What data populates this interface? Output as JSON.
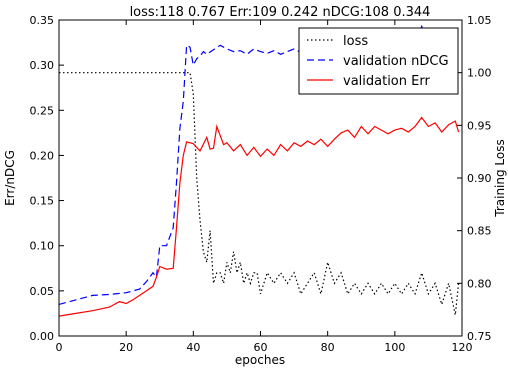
{
  "chart_data": {
    "type": "line",
    "title": "loss:118 0.767 Err:109 0.242 nDCG:108 0.344",
    "xlabel": "epoches",
    "ylabel_left": "Err/nDCG",
    "ylabel_right": "Training Loss",
    "xlim": [
      0,
      120
    ],
    "ylim_left": [
      0.0,
      0.35
    ],
    "ylim_right": [
      0.75,
      1.05
    ],
    "xticks": [
      "0",
      "20",
      "40",
      "60",
      "80",
      "100",
      "120"
    ],
    "yticks_left": [
      "0.00",
      "0.05",
      "0.10",
      "0.15",
      "0.20",
      "0.25",
      "0.30",
      "0.35"
    ],
    "yticks_right": [
      "0.75",
      "0.80",
      "0.85",
      "0.90",
      "0.95",
      "1.00",
      "1.05"
    ],
    "legend_position": "top-right",
    "series": [
      {
        "name": "loss",
        "axis": "right",
        "color": "#000000",
        "style": "dotted",
        "x": [
          0,
          5,
          10,
          15,
          20,
          25,
          30,
          35,
          37,
          38,
          39,
          40,
          41,
          42,
          43,
          44,
          45,
          46,
          47,
          48,
          49,
          50,
          51,
          52,
          53,
          54,
          55,
          56,
          57,
          58,
          59,
          60,
          62,
          64,
          66,
          68,
          70,
          72,
          74,
          76,
          78,
          80,
          82,
          84,
          86,
          88,
          90,
          92,
          94,
          96,
          98,
          100,
          102,
          104,
          106,
          108,
          110,
          112,
          114,
          116,
          118,
          119
        ],
        "values": [
          1.0,
          1.0,
          1.0,
          1.0,
          1.0,
          1.0,
          1.0,
          1.0,
          1.0,
          1.0,
          1.0,
          0.98,
          0.9,
          0.86,
          0.83,
          0.82,
          0.85,
          0.8,
          0.81,
          0.81,
          0.8,
          0.82,
          0.81,
          0.83,
          0.81,
          0.82,
          0.8,
          0.81,
          0.8,
          0.81,
          0.81,
          0.79,
          0.81,
          0.8,
          0.81,
          0.8,
          0.81,
          0.79,
          0.8,
          0.81,
          0.79,
          0.82,
          0.8,
          0.81,
          0.79,
          0.8,
          0.79,
          0.8,
          0.79,
          0.8,
          0.79,
          0.8,
          0.79,
          0.8,
          0.79,
          0.81,
          0.79,
          0.8,
          0.78,
          0.8,
          0.77,
          0.8
        ]
      },
      {
        "name": "validation nDCG",
        "axis": "left",
        "color": "#0000ff",
        "style": "dashed",
        "x": [
          0,
          5,
          10,
          15,
          20,
          22,
          24,
          26,
          28,
          29,
          30,
          32,
          34,
          35,
          36,
          37,
          38,
          39,
          40,
          41,
          42,
          43,
          44,
          46,
          48,
          50,
          52,
          54,
          56,
          58,
          60,
          62,
          64,
          66,
          68,
          70,
          72,
          74,
          76,
          78,
          80,
          82,
          84,
          86,
          88,
          90,
          92,
          94,
          96,
          98,
          100,
          102,
          104,
          106,
          108,
          110,
          112,
          114,
          116,
          118,
          119
        ],
        "values": [
          0.035,
          0.04,
          0.045,
          0.046,
          0.048,
          0.05,
          0.052,
          0.06,
          0.07,
          0.065,
          0.1,
          0.1,
          0.12,
          0.17,
          0.23,
          0.26,
          0.322,
          0.32,
          0.3,
          0.307,
          0.31,
          0.315,
          0.312,
          0.317,
          0.322,
          0.318,
          0.315,
          0.316,
          0.312,
          0.318,
          0.315,
          0.313,
          0.316,
          0.312,
          0.315,
          0.318,
          0.314,
          0.316,
          0.318,
          0.315,
          0.318,
          0.319,
          0.316,
          0.317,
          0.315,
          0.318,
          0.316,
          0.318,
          0.315,
          0.319,
          0.316,
          0.318,
          0.318,
          0.316,
          0.343,
          0.332,
          0.335,
          0.33,
          0.335,
          0.338,
          0.335
        ]
      },
      {
        "name": "validation Err",
        "axis": "left",
        "color": "#ff0000",
        "style": "solid",
        "x": [
          0,
          5,
          10,
          15,
          18,
          20,
          22,
          24,
          26,
          28,
          29,
          30,
          32,
          34,
          35,
          36,
          37,
          38,
          40,
          42,
          44,
          45,
          46,
          47,
          48,
          49,
          50,
          52,
          54,
          56,
          58,
          60,
          62,
          64,
          66,
          68,
          70,
          72,
          74,
          76,
          78,
          80,
          82,
          84,
          86,
          88,
          90,
          92,
          94,
          96,
          98,
          100,
          102,
          104,
          106,
          108,
          110,
          112,
          114,
          116,
          118,
          119
        ],
        "values": [
          0.022,
          0.025,
          0.028,
          0.032,
          0.038,
          0.036,
          0.04,
          0.045,
          0.05,
          0.055,
          0.065,
          0.077,
          0.074,
          0.075,
          0.12,
          0.17,
          0.2,
          0.215,
          0.213,
          0.205,
          0.22,
          0.207,
          0.208,
          0.232,
          0.222,
          0.212,
          0.214,
          0.205,
          0.212,
          0.2,
          0.209,
          0.199,
          0.207,
          0.2,
          0.212,
          0.205,
          0.214,
          0.21,
          0.216,
          0.212,
          0.218,
          0.21,
          0.218,
          0.225,
          0.228,
          0.22,
          0.232,
          0.224,
          0.232,
          0.228,
          0.224,
          0.228,
          0.23,
          0.226,
          0.232,
          0.242,
          0.232,
          0.236,
          0.226,
          0.234,
          0.238,
          0.226
        ]
      }
    ]
  }
}
